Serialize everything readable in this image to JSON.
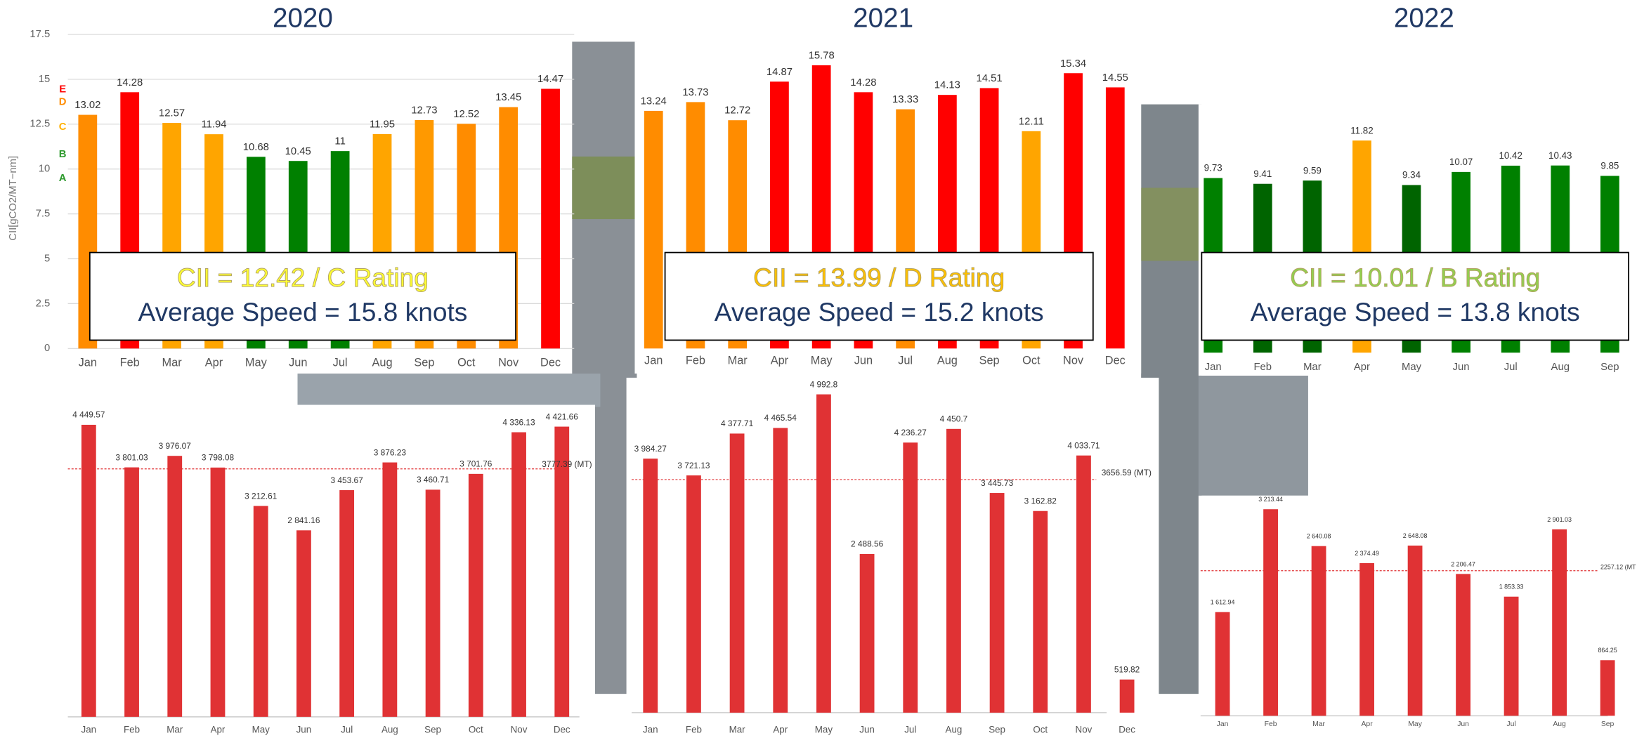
{
  "chart_data": [
    {
      "type": "bar",
      "title": "2020",
      "categories": [
        "Jan",
        "Feb",
        "Mar",
        "Apr",
        "May",
        "Jun",
        "Jul",
        "Aug",
        "Sep",
        "Oct",
        "Nov",
        "Dec"
      ],
      "values": [
        13.02,
        14.28,
        12.57,
        11.94,
        10.68,
        10.45,
        11,
        11.95,
        12.73,
        12.52,
        13.45,
        14.47
      ],
      "colors": [
        "#ff8c00",
        "#ff0000",
        "#ffa500",
        "#ffa500",
        "#008000",
        "#008000",
        "#008000",
        "#ffa500",
        "#ff9900",
        "#ff8c00",
        "#ff8c00",
        "#ff0000"
      ],
      "ylim": [
        0,
        17.5
      ],
      "yticks": [
        0,
        2.5,
        5,
        7.5,
        10,
        12.5,
        15,
        17.5
      ],
      "grid": true,
      "y_label": "CII[gCO2/MT−nm]",
      "rating_labels": [
        {
          "label": "E",
          "color": "#ff0000"
        },
        {
          "label": "D",
          "color": "#ff8c00"
        },
        {
          "label": "C",
          "color": "#ffb000"
        },
        {
          "label": "B",
          "color": "#2e9a2e"
        },
        {
          "label": "A",
          "color": "#2e9a2e"
        }
      ],
      "annotations": [
        {
          "text": "CII = 12.42 / C Rating",
          "color": "#ffff33"
        },
        {
          "text": "Average Speed = 15.8 knots",
          "color": "#1f3864"
        }
      ]
    },
    {
      "type": "bar",
      "title": "2021",
      "categories": [
        "Jan",
        "Feb",
        "Mar",
        "Apr",
        "May",
        "Jun",
        "Jul",
        "Aug",
        "Sep",
        "Oct",
        "Nov",
        "Dec"
      ],
      "values": [
        13.24,
        13.73,
        12.72,
        14.87,
        15.78,
        14.28,
        13.33,
        14.13,
        14.51,
        12.11,
        15.34,
        14.55
      ],
      "colors": [
        "#ff8c00",
        "#ff8c00",
        "#ff8c00",
        "#ff0000",
        "#ff0000",
        "#ff0000",
        "#ff8c00",
        "#ff0000",
        "#ff0000",
        "#ffa500",
        "#ff0000",
        "#ff0000"
      ],
      "ylim": [
        0,
        17.5
      ],
      "annotations": [
        {
          "text": "CII = 13.99 / D Rating",
          "color": "#ffc000"
        },
        {
          "text": "Average Speed = 15.2 knots",
          "color": "#1f3864"
        }
      ]
    },
    {
      "type": "bar",
      "title": "2022",
      "categories": [
        "Jan",
        "Feb",
        "Mar",
        "Apr",
        "May",
        "Jun",
        "Jul",
        "Aug",
        "Sep"
      ],
      "values": [
        9.73,
        9.41,
        9.59,
        11.82,
        9.34,
        10.07,
        10.42,
        10.43,
        9.85
      ],
      "colors": [
        "#008000",
        "#006400",
        "#006400",
        "#ffa500",
        "#006400",
        "#008000",
        "#008000",
        "#008000",
        "#008000"
      ],
      "ylim": [
        0,
        17.5
      ],
      "annotations": [
        {
          "text": "CII = 10.01 / B Rating",
          "color": "#92d050"
        },
        {
          "text": "Average Speed = 13.8 knots",
          "color": "#1f3864"
        }
      ]
    },
    {
      "type": "bar",
      "categories": [
        "Jan",
        "Feb",
        "Mar",
        "Apr",
        "May",
        "Jun",
        "Jul",
        "Aug",
        "Sep",
        "Oct",
        "Nov",
        "Dec"
      ],
      "values": [
        4449.57,
        3801.03,
        3976.07,
        3798.08,
        3212.61,
        2841.16,
        3453.67,
        3876.23,
        3460.71,
        3701.76,
        4336.13,
        4421.66
      ],
      "value_labels": [
        "4 449.57",
        "3 801.03",
        "3 976.07",
        "3 798.08",
        "3 212.61",
        "2 841.16",
        "3 453.67",
        "3 876.23",
        "3 460.71",
        "3 701.76",
        "4 336.13",
        "4 421.66"
      ],
      "color": "#e03234",
      "ylim": [
        0,
        5000
      ],
      "average": {
        "value": 3777.39,
        "label": "3777.39 (MT)"
      }
    },
    {
      "type": "bar",
      "categories": [
        "Jan",
        "Feb",
        "Mar",
        "Apr",
        "May",
        "Jun",
        "Jul",
        "Aug",
        "Sep",
        "Oct",
        "Nov",
        "Dec"
      ],
      "values": [
        3984.27,
        3721.13,
        4377.71,
        4465.54,
        4992.8,
        2488.56,
        4236.27,
        4450.7,
        3445.73,
        3162.82,
        4033.71,
        519.82
      ],
      "value_labels": [
        "3 984.27",
        "3 721.13",
        "4 377.71",
        "4 465.54",
        "4 992.8",
        "2 488.56",
        "4 236.27",
        "4 450.7",
        "3 445.73",
        "3 162.82",
        "4 033.71",
        "519.82"
      ],
      "color": "#e03234",
      "ylim": [
        0,
        5000
      ],
      "average": {
        "value": 3656.59,
        "label": "3656.59 (MT)"
      }
    },
    {
      "type": "bar",
      "categories": [
        "Jan",
        "Feb",
        "Mar",
        "Apr",
        "May",
        "Jun",
        "Jul",
        "Aug",
        "Sep"
      ],
      "values": [
        1612.94,
        3213.44,
        2640.08,
        2374.49,
        2648.08,
        2206.47,
        1853.33,
        2901.03,
        864.25
      ],
      "value_labels": [
        "1 612.94",
        "3 213.44",
        "2 640.08",
        "2 374.49",
        "2 648.08",
        "2 206.47",
        "1 853.33",
        "2 901.03",
        "864.25"
      ],
      "color": "#e03234",
      "ylim": [
        0,
        5000
      ],
      "average": {
        "value": 2257.12,
        "label": "2257.12 (MT"
      }
    }
  ]
}
